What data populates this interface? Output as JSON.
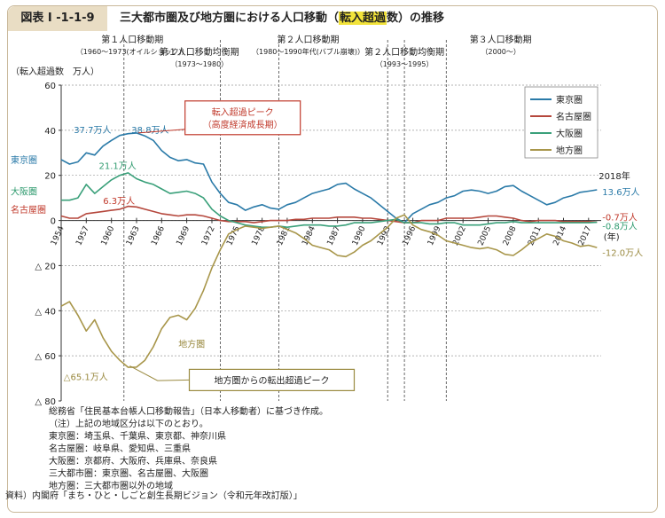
{
  "figure": {
    "number": "図表 I -1-1-9",
    "title_pre": "三大都市圏及び地方圏における人口移動（",
    "title_highlight": "転入超過",
    "title_mid": "数",
    "title_post": "）の推移"
  },
  "colors": {
    "tokyo": "#2a7aa8",
    "nagoya": "#b5473c",
    "osaka": "#3aa07a",
    "chiho": "#a8964a",
    "annotation_red": "#c0392b",
    "annotation_olive": "#9a8a40",
    "tokyo_label": "#2a7aa8",
    "nagoya_label": "#c0392b",
    "osaka_label": "#2e9a6e",
    "chiho_label": "#9a8a40",
    "grid": "#999999"
  },
  "periods": [
    {
      "name": "第１人口移動期",
      "range": "（1960～1973(オイルショック)）"
    },
    {
      "name": "第１人口移動均衡期",
      "range": "（1973～1980）"
    },
    {
      "name": "第２人口移動期",
      "range": "（1980～1990年代(バブル崩壊)）"
    },
    {
      "name": "第２人口移動均衡期",
      "range": "（1993～1995）"
    },
    {
      "name": "第３人口移動期",
      "range": "（2000～）"
    }
  ],
  "annotations": {
    "peak_in_line1": "転入超過ピーク",
    "peak_in_line2": "（高度経済成長期）",
    "peak_out": "地方圏からの転出超過ピーク",
    "tokyo_1962": "37.7万人",
    "tokyo_peak": "38.8万人",
    "osaka_peak": "21.1万人",
    "nagoya_peak": "6.3万人",
    "chiho_min": "△65.1万人",
    "chiho_label": "地方圏",
    "year_2018": "2018年",
    "end_tokyo": "13.6万人",
    "end_nagoya": "-0.7万人",
    "end_osaka": "-0.8万人",
    "end_chiho": "-12.0万人",
    "year_unit": "(年)"
  },
  "notes": [
    "総務省「住民基本台帳人口移動報告」（日本人移動者）に基づき作成。",
    "（注）上記の地域区分は以下のとおり。",
    "東京圏：埼玉県、千葉県、東京都、神奈川県",
    "名古屋圏：岐阜県、愛知県、三重県",
    "大阪圏：京都府、大阪府、兵庫県、奈良県",
    "三大都市圏：東京圏、名古屋圏、大阪圏",
    "地方圏：三大都市圏以外の地域"
  ],
  "source": "資料）内閣府「まち・ひと・しごと創生長期ビジョン（令和元年改訂版）」",
  "chart_data": {
    "type": "line",
    "ylabel": "（転入超過数　万人）",
    "ylim": [
      -80,
      60
    ],
    "yticks": [
      60,
      40,
      20,
      0,
      -20,
      -40,
      -60,
      -80
    ],
    "ytick_labels": [
      "60",
      "40",
      "20",
      "0",
      "△ 20",
      "△ 40",
      "△ 60",
      "△ 80"
    ],
    "xtick_labels": [
      "1954",
      "1957",
      "1960",
      "1963",
      "1966",
      "1969",
      "1972",
      "1975",
      "1978",
      "1981",
      "1984",
      "1987",
      "1990",
      "1993",
      "1996",
      "1999",
      "2002",
      "2005",
      "2008",
      "2011",
      "2014",
      "2017"
    ],
    "x": [
      1954,
      1955,
      1956,
      1957,
      1958,
      1959,
      1960,
      1961,
      1962,
      1963,
      1964,
      1965,
      1966,
      1967,
      1968,
      1969,
      1970,
      1971,
      1972,
      1973,
      1974,
      1975,
      1976,
      1977,
      1978,
      1979,
      1980,
      1981,
      1982,
      1983,
      1984,
      1985,
      1986,
      1987,
      1988,
      1989,
      1990,
      1991,
      1992,
      1993,
      1994,
      1995,
      1996,
      1997,
      1998,
      1999,
      2000,
      2001,
      2002,
      2003,
      2004,
      2005,
      2006,
      2007,
      2008,
      2009,
      2010,
      2011,
      2012,
      2013,
      2014,
      2015,
      2016,
      2017,
      2018
    ],
    "legend_position": "top-right",
    "period_boundaries": [
      1961.5,
      1973,
      1980,
      1993,
      1995,
      2000
    ],
    "series": [
      {
        "name": "東京圏",
        "color_key": "tokyo",
        "values": [
          27,
          25,
          26,
          30,
          29,
          33,
          35.5,
          37.7,
          38.5,
          38.8,
          37.5,
          35.5,
          31,
          28,
          26.5,
          27,
          25.5,
          25,
          17,
          12,
          8,
          7,
          4.5,
          6,
          7,
          5.5,
          5,
          7,
          8,
          10,
          12,
          13,
          14,
          16,
          16.5,
          14,
          12,
          10,
          7,
          4,
          1,
          -1,
          3,
          5,
          7,
          8,
          10,
          11,
          13,
          13.5,
          13,
          12,
          13,
          15,
          15.5,
          13,
          11,
          9,
          7,
          8,
          10,
          11,
          12.5,
          13,
          13.6
        ]
      },
      {
        "name": "名古屋圏",
        "color_key": "nagoya",
        "values": [
          2,
          1,
          1,
          3,
          3.5,
          4,
          4.5,
          5,
          6.3,
          6,
          5,
          4,
          3,
          2.5,
          2,
          2.5,
          2.5,
          2,
          1,
          0,
          -0.5,
          -0.5,
          -0.5,
          -1,
          -0.5,
          0,
          0,
          0,
          0.5,
          0.5,
          1,
          1,
          1,
          1.5,
          1.5,
          1.5,
          1,
          1,
          0.5,
          0,
          -0.5,
          -1,
          -1,
          0,
          0,
          0,
          1,
          1,
          1,
          1,
          1.5,
          2,
          2,
          1.5,
          1,
          0,
          -0.5,
          0,
          0,
          0,
          -0.5,
          -0.5,
          -0.5,
          -0.5,
          -0.7
        ]
      },
      {
        "name": "大阪圏",
        "color_key": "osaka",
        "values": [
          9,
          9,
          10,
          16,
          12,
          15,
          18,
          20,
          21.1,
          18.5,
          17,
          16,
          14,
          12,
          12.5,
          13,
          12,
          10,
          5,
          2,
          0,
          -1,
          -2,
          -2.5,
          -3,
          -3,
          -2.5,
          -3,
          -2.5,
          -2,
          -2,
          -2,
          -2.5,
          -2.5,
          -2,
          -1,
          -1,
          -1,
          -0.5,
          0,
          0.5,
          -1,
          -1,
          -1,
          -1.5,
          -1.5,
          -1,
          -1,
          -2,
          -2,
          -2,
          -1.5,
          -1,
          -1,
          -0.5,
          -1,
          -1,
          -1,
          -1,
          -1,
          -1,
          -1,
          -1,
          -1,
          -0.8
        ]
      },
      {
        "name": "地方圏",
        "color_key": "chiho",
        "values": [
          -38,
          -36,
          -42,
          -49,
          -44,
          -52,
          -58,
          -62,
          -65.1,
          -65,
          -62,
          -56,
          -48,
          -43,
          -42,
          -44,
          -39,
          -31,
          -21,
          -13,
          -6,
          -4,
          -2.5,
          -3,
          -3.5,
          -3,
          -2.5,
          -4,
          -5.5,
          -8,
          -11,
          -12,
          -13,
          -15.5,
          -16,
          -14,
          -11,
          -9,
          -6,
          -3,
          1,
          2.5,
          -2,
          -4,
          -5,
          -6.5,
          -9,
          -10,
          -11,
          -12,
          -12.5,
          -12,
          -13,
          -15,
          -15.5,
          -13,
          -10,
          -8,
          -6,
          -7,
          -9,
          -10,
          -11.5,
          -11,
          -12
        ]
      }
    ]
  }
}
